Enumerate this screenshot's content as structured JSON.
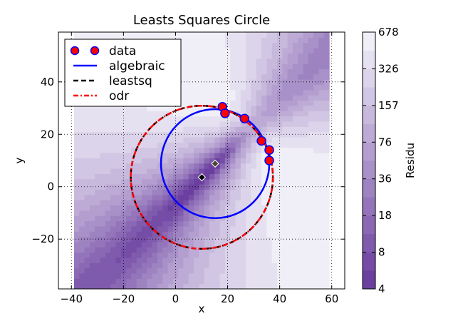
{
  "chart_data": {
    "type": "scatter",
    "title": "Leasts Squares Circle",
    "xlabel": "x",
    "ylabel": "y",
    "xlim": [
      -45,
      65
    ],
    "ylim": [
      -39,
      59
    ],
    "x_ticks": [
      -40,
      -20,
      0,
      20,
      40,
      60
    ],
    "y_ticks": [
      -20,
      0,
      20,
      40
    ],
    "grid": true,
    "legend": {
      "position": "top-left",
      "entries": [
        "data",
        "algebraic",
        "leastsq",
        "odr"
      ]
    },
    "data_points": {
      "name": "data",
      "x": [
        18.0,
        19.0,
        26.5,
        33.0,
        36.0,
        36.0
      ],
      "y": [
        30.5,
        28.0,
        26.0,
        17.5,
        14.0,
        10.0
      ]
    },
    "circles": [
      {
        "name": "algebraic",
        "center": [
          15.2,
          8.8
        ],
        "radius": 20.8,
        "color": "#0000ff",
        "style": "solid"
      },
      {
        "name": "leastsq",
        "center": [
          10.1,
          3.6
        ],
        "radius": 27.3,
        "color": "#000000",
        "style": "dashed"
      },
      {
        "name": "odr",
        "center": [
          10.1,
          3.6
        ],
        "radius": 27.3,
        "color": "#ff0000",
        "style": "dashdot"
      }
    ],
    "centers": [
      {
        "x": 15.2,
        "y": 8.8,
        "color": "#4a4a32"
      },
      {
        "x": 10.1,
        "y": 3.6,
        "color": "#000000"
      }
    ],
    "contour_extent": {
      "x": [
        -39,
        59
      ],
      "y": [
        -39,
        59
      ]
    },
    "colorbar": {
      "label": "Residu",
      "tick_labels": [
        "4",
        "8",
        "18",
        "36",
        "76",
        "157",
        "326",
        "678"
      ],
      "levels": 14,
      "min": 4,
      "max": 678,
      "color_low": "#6b3fa0",
      "color_high": "#f0eff7"
    },
    "colors": {
      "data_face": "#ff0000",
      "data_edge": "#0000ff",
      "grid": "#000000"
    }
  }
}
